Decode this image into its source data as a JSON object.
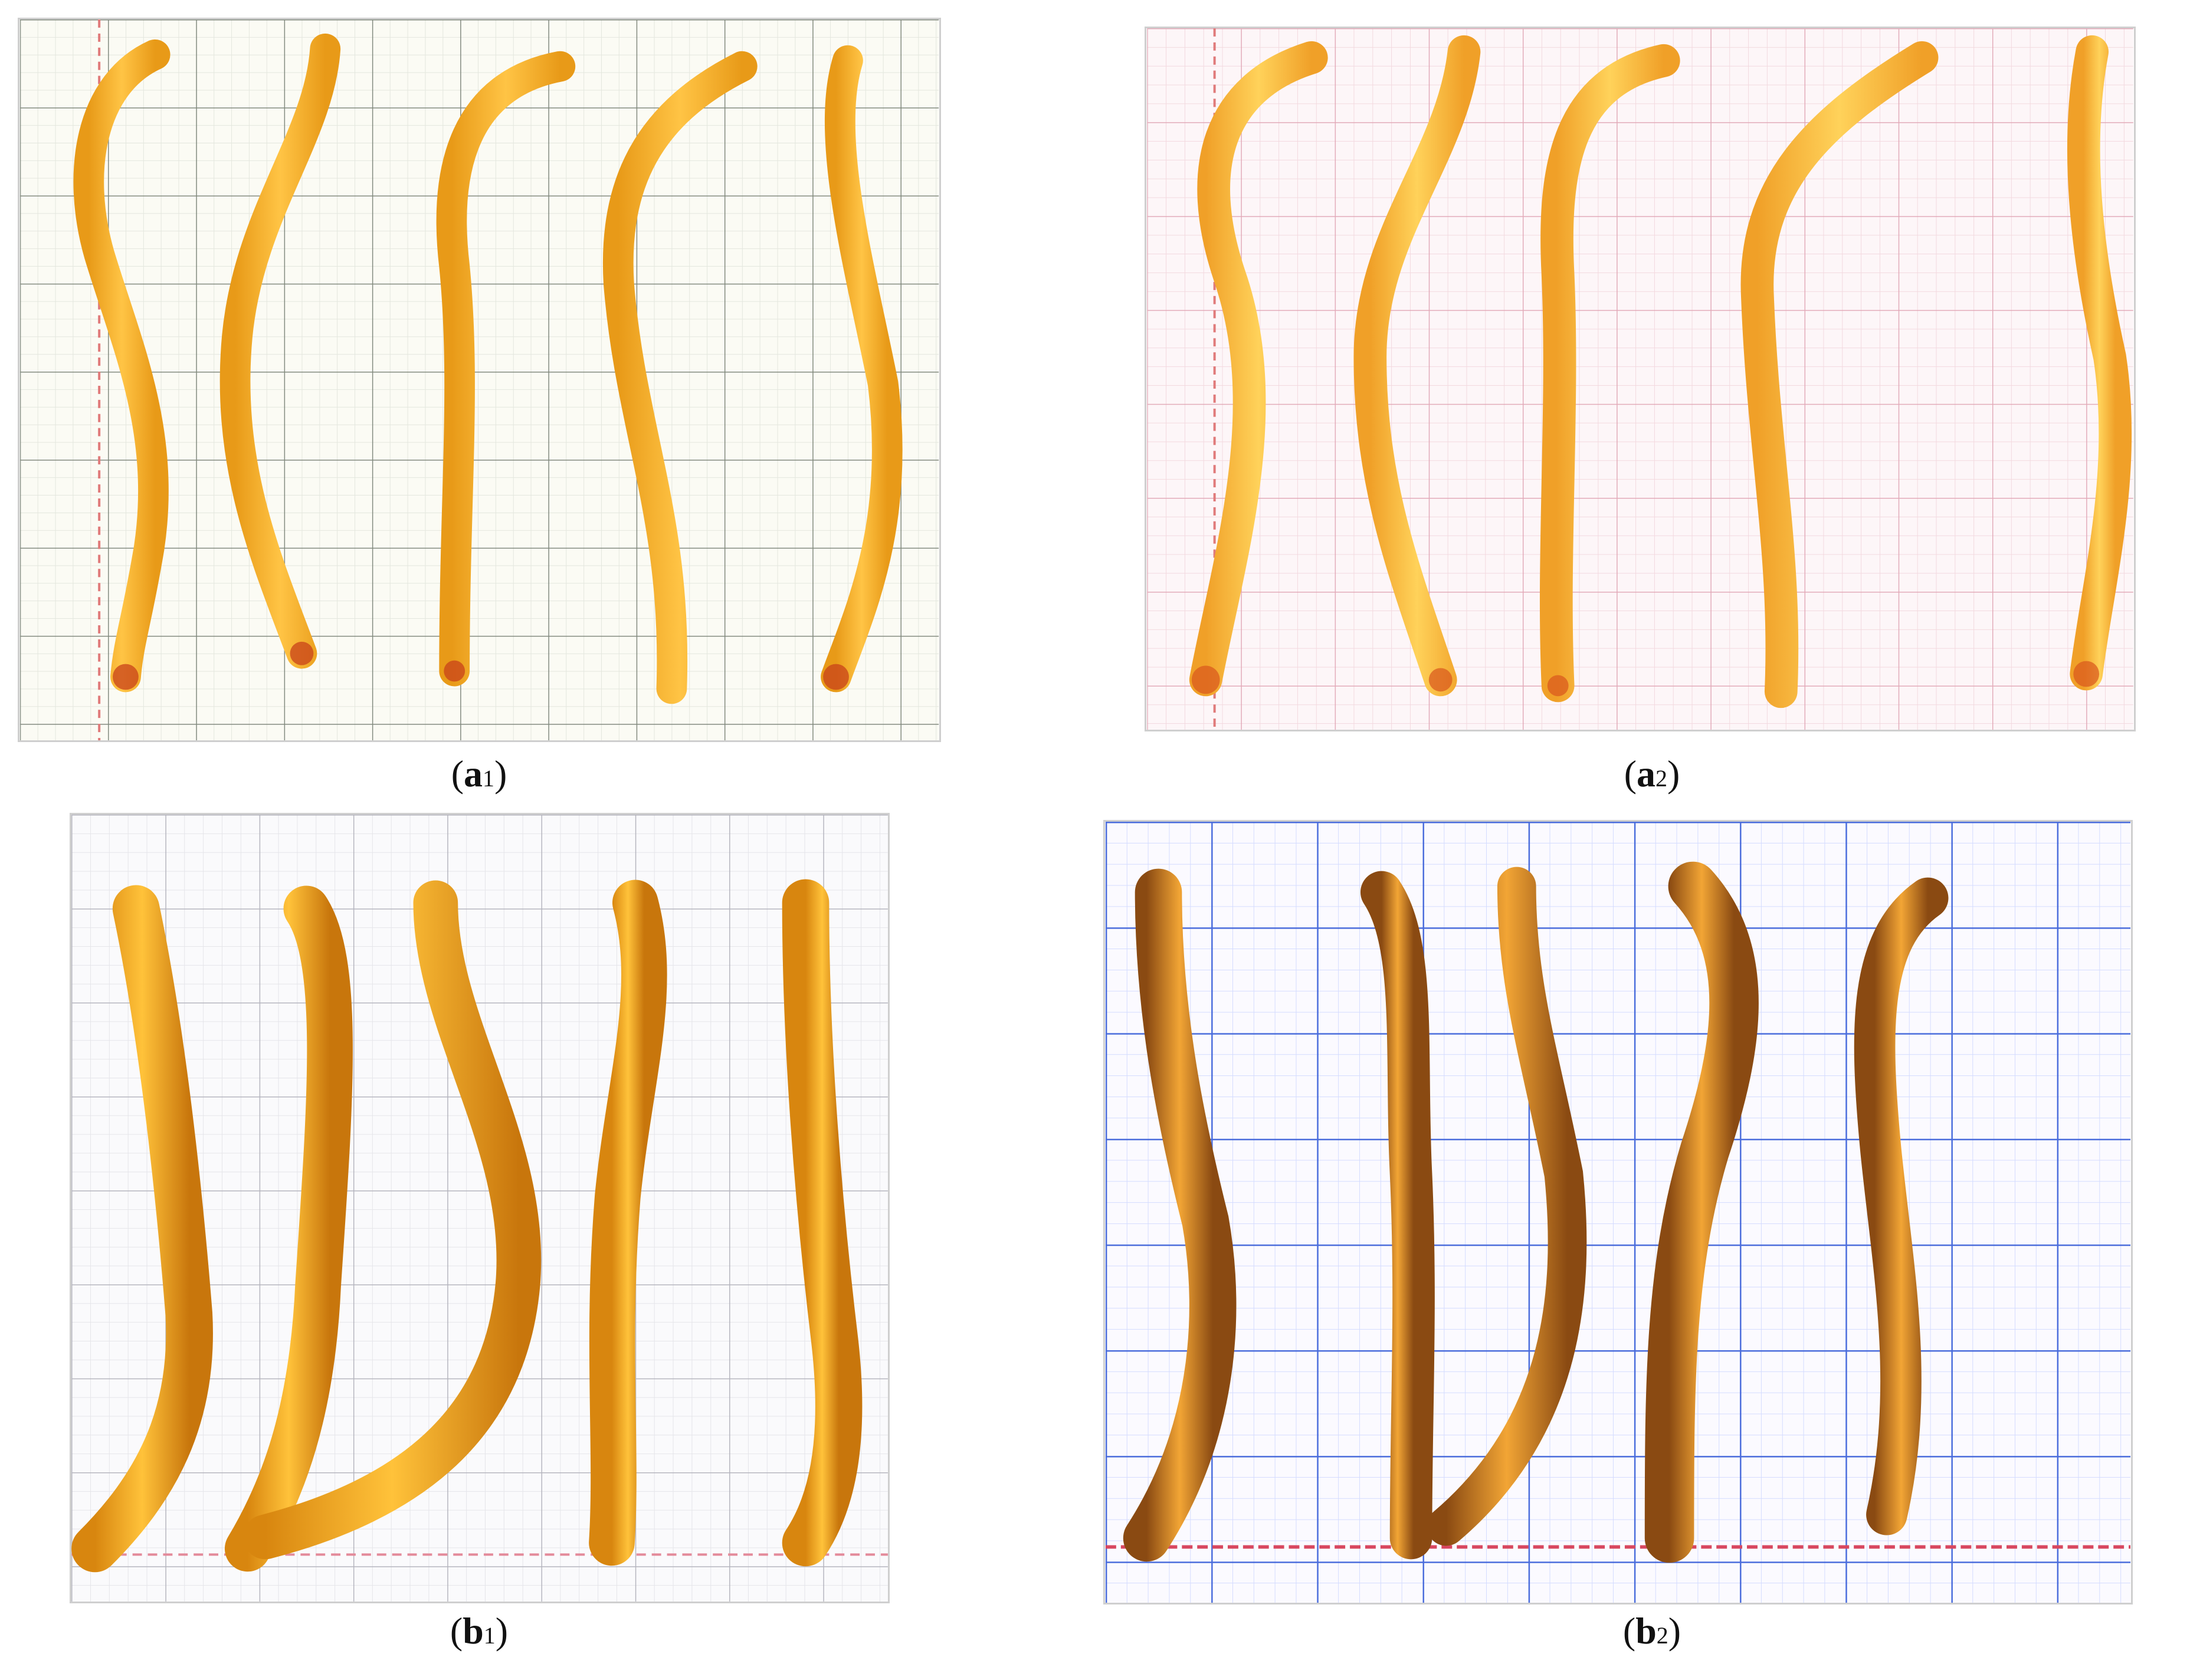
{
  "panels": [
    {
      "letter": "a",
      "sub": "1",
      "grid_color": "#2e3a2e",
      "bg": "#fbfbf4",
      "accent": "#e0a22a"
    },
    {
      "letter": "a",
      "sub": "2",
      "grid_color": "#e6b6c2",
      "bg": "#fdf6f8",
      "accent": "#f0a935"
    },
    {
      "letter": "b",
      "sub": "1",
      "grid_color": "#a9a9b3",
      "bg": "#fafafc",
      "accent": "#f0a526"
    },
    {
      "letter": "b",
      "sub": "2",
      "grid_color": "#2f57d6",
      "bg": "#fbfaff",
      "accent": "#d98a1e"
    }
  ]
}
